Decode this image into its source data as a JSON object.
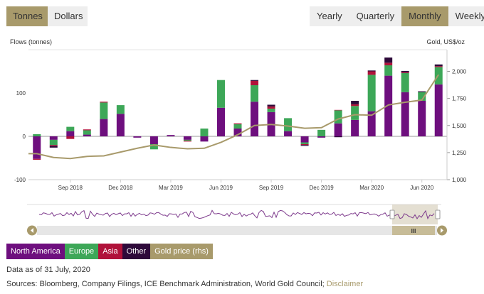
{
  "unit_toggle": {
    "options": [
      "Tonnes",
      "Dollars"
    ],
    "active": "Tonnes"
  },
  "period_toggle": {
    "options": [
      "Yearly",
      "Quarterly",
      "Monthly",
      "Weekly"
    ],
    "active": "Monthly"
  },
  "colors": {
    "north_america": "#6e0f7e",
    "europe": "#3da758",
    "asia": "#b0123a",
    "other": "#2e0a3a",
    "gold_price": "#a89a6b",
    "navigator_line": "#7d3a8c",
    "navigator_handle": "#a89a6b"
  },
  "chart_data": {
    "type": "bar",
    "stacked": true,
    "left_axis_label": "Flows (tonnes)",
    "right_axis_label": "Gold, US$/oz",
    "y_left": {
      "min": -100,
      "max": 200,
      "ticks": [
        -100,
        0,
        100
      ]
    },
    "y_right": {
      "min": 1000,
      "max": 2200,
      "ticks": [
        1000,
        1250,
        1500,
        1750,
        2000
      ],
      "tick_labels": [
        "1,000",
        "1,250",
        "1,500",
        "1,750",
        "2,000"
      ]
    },
    "x_tick_labels": [
      {
        "label": "Sep 2018",
        "index": 2
      },
      {
        "label": "Dec 2018",
        "index": 5
      },
      {
        "label": "Mar 2019",
        "index": 8
      },
      {
        "label": "Jun 2019",
        "index": 11
      },
      {
        "label": "Sep 2019",
        "index": 14
      },
      {
        "label": "Dec 2019",
        "index": 17
      },
      {
        "label": "Mar 2020",
        "index": 20
      },
      {
        "label": "Jun 2020",
        "index": 23
      }
    ],
    "categories": [
      "Jul 2018",
      "Aug 2018",
      "Sep 2018",
      "Oct 2018",
      "Nov 2018",
      "Dec 2018",
      "Jan 2019",
      "Feb 2019",
      "Mar 2019",
      "Apr 2019",
      "May 2019",
      "Jun 2019",
      "Jul 2019",
      "Aug 2019",
      "Sep 2019",
      "Oct 2019",
      "Nov 2019",
      "Dec 2019",
      "Jan 2020",
      "Feb 2020",
      "Mar 2020",
      "Apr 2020",
      "May 2020",
      "Jun 2020",
      "Jul 2020"
    ],
    "series": [
      {
        "name": "North America",
        "color": "#6e0f7e",
        "values": [
          -52,
          -8,
          12,
          4,
          40,
          52,
          -3,
          -18,
          3,
          -8,
          -12,
          66,
          18,
          80,
          56,
          12,
          -14,
          -3,
          30,
          38,
          58,
          140,
          102,
          82,
          120
        ]
      },
      {
        "name": "Europe",
        "color": "#3da758",
        "values": [
          5,
          -12,
          10,
          10,
          38,
          20,
          0,
          -12,
          0,
          -2,
          18,
          64,
          10,
          38,
          8,
          30,
          -4,
          15,
          30,
          32,
          84,
          24,
          44,
          20,
          40
        ]
      },
      {
        "name": "Asia",
        "color": "#b0123a",
        "values": [
          -2,
          -2,
          -6,
          2,
          2,
          0,
          0,
          0,
          0,
          -2,
          0,
          0,
          2,
          10,
          5,
          0,
          -2,
          0,
          1,
          4,
          8,
          6,
          2,
          0,
          2
        ]
      },
      {
        "name": "Other",
        "color": "#2e0a3a",
        "values": [
          0,
          -4,
          0,
          0,
          0,
          0,
          0,
          0,
          0,
          0,
          0,
          0,
          0,
          2,
          4,
          0,
          -2,
          0,
          -2,
          8,
          2,
          12,
          3,
          2,
          4
        ]
      }
    ],
    "gold_price": {
      "name": "Gold price (rhs)",
      "color": "#a89a6b",
      "values": [
        1240,
        1205,
        1195,
        1215,
        1220,
        1255,
        1290,
        1320,
        1298,
        1285,
        1290,
        1345,
        1415,
        1500,
        1510,
        1495,
        1475,
        1480,
        1560,
        1600,
        1595,
        1690,
        1715,
        1735,
        1970
      ]
    },
    "legend": [
      "North America",
      "Europe",
      "Asia",
      "Other",
      "Gold price (rhs)"
    ]
  },
  "navigator": {
    "scrollbar_grip": "III"
  },
  "footer": {
    "data_as_of": "Data as of 31 July, 2020",
    "sources_text": "Sources: Bloomberg, Company Filings, ICE Benchmark Administration, World Gold Council;",
    "disclaimer_link": "Disclaimer"
  }
}
